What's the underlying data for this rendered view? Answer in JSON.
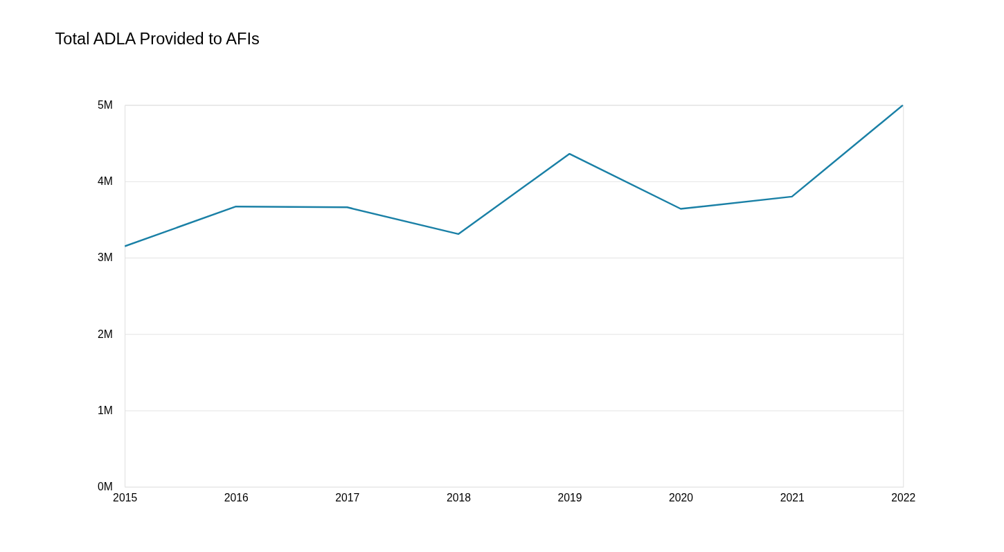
{
  "chart_data": {
    "type": "line",
    "title": "Total ADLA Provided to AFIs",
    "categories": [
      "2015",
      "2016",
      "2017",
      "2018",
      "2019",
      "2020",
      "2021",
      "2022"
    ],
    "series": [
      {
        "color": "#1a80a6",
        "values": [
          3150000,
          3670000,
          3660000,
          3310000,
          4360000,
          3640000,
          3800000,
          5000000
        ]
      }
    ],
    "ylim": [
      0,
      5000000
    ],
    "yticks": [
      {
        "value": 0,
        "label": "0M"
      },
      {
        "value": 1000000,
        "label": "1M"
      },
      {
        "value": 2000000,
        "label": "2M"
      },
      {
        "value": 3000000,
        "label": "3M"
      },
      {
        "value": 4000000,
        "label": "4M"
      },
      {
        "value": 5000000,
        "label": "5M"
      }
    ],
    "grid": "y",
    "marker": "none",
    "line_style": "solid"
  }
}
